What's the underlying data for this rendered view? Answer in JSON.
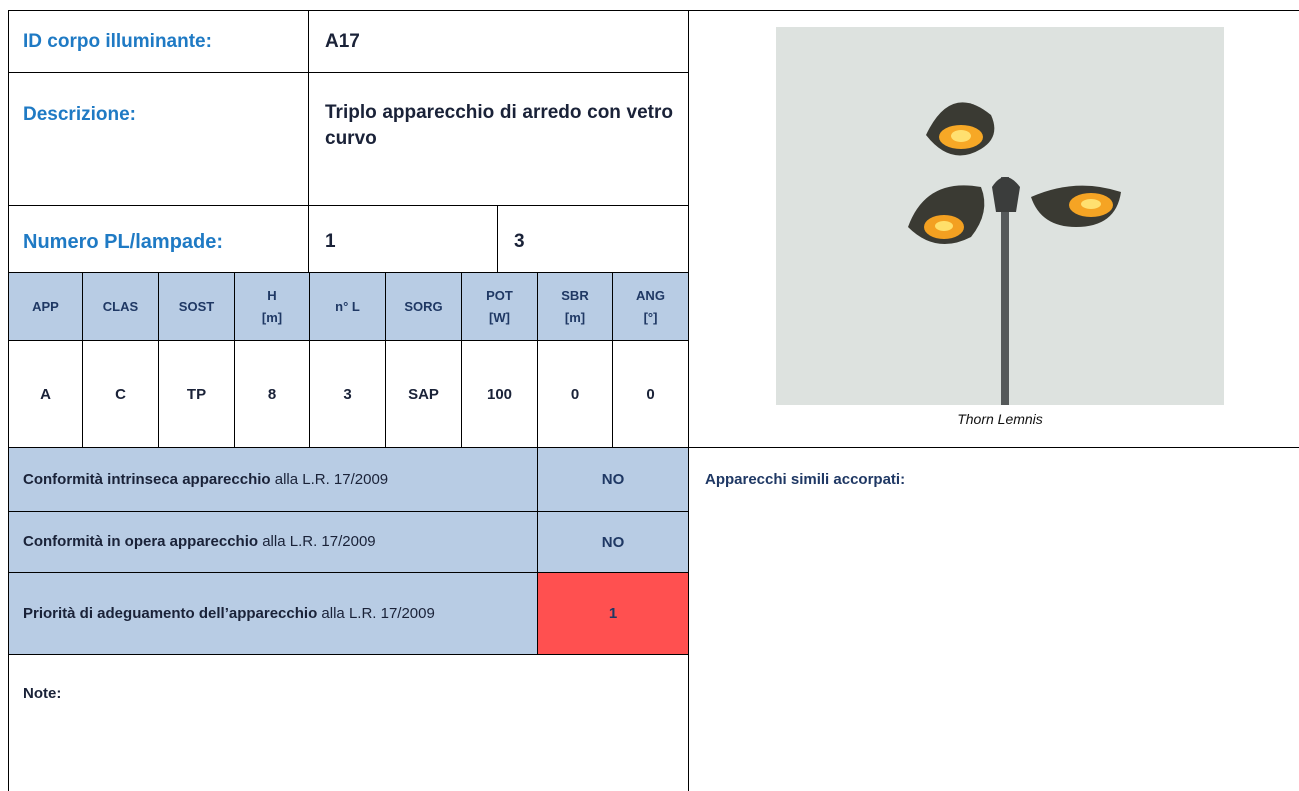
{
  "id": {
    "label": "ID corpo illuminante:",
    "value": "A17"
  },
  "description": {
    "label": "Descrizione:",
    "value": "Triplo apparecchio di arredo con vetro curvo"
  },
  "lamps": {
    "label": "Numero PL/lampade:",
    "pl": "1",
    "count": "3"
  },
  "table": {
    "header": [
      [
        "APP"
      ],
      [
        "CLAS"
      ],
      [
        "SOST"
      ],
      [
        "H",
        "[m]"
      ],
      [
        "n° L"
      ],
      [
        "SORG"
      ],
      [
        "POT",
        "[W]"
      ],
      [
        "SBR",
        "[m]"
      ],
      [
        "ANG",
        "[°]"
      ]
    ],
    "row": [
      "A",
      "C",
      "TP",
      "8",
      "3",
      "SAP",
      "100",
      "0",
      "0"
    ]
  },
  "conformity": [
    {
      "bold": "Conformità intrinseca apparecchio",
      "text": "alla L.R. 17/2009",
      "value": "NO"
    },
    {
      "bold": "Conformità in opera apparecchio",
      "text": "alla L.R. 17/2009",
      "value": "NO"
    },
    {
      "bold": "Priorità di adeguamento dell’apparecchio",
      "text": "alla L.R. 17/2009",
      "value": "1"
    }
  ],
  "note": {
    "label": "Note:"
  },
  "photo": {
    "caption": "Thorn Lemnis"
  },
  "similar": {
    "label": "Apparecchi simili accorpati:"
  }
}
